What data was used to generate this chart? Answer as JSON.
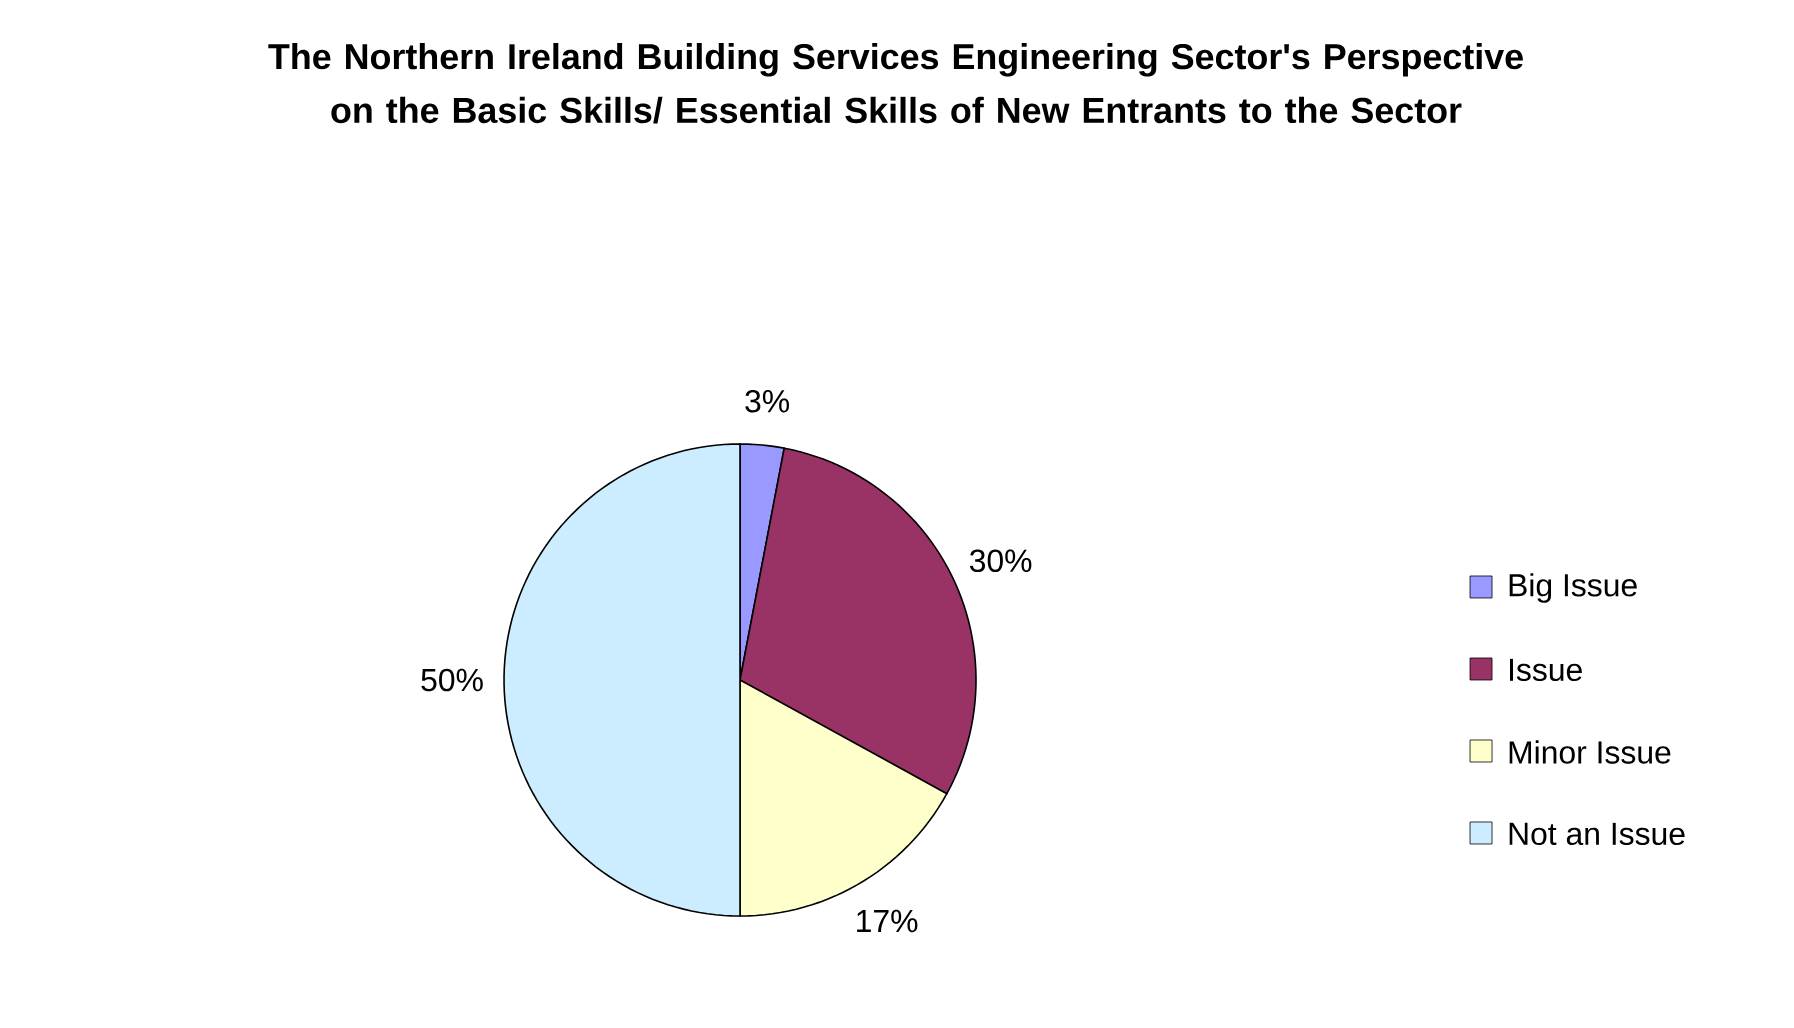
{
  "chart_data": {
    "type": "pie",
    "title": "The Northern Ireland Building Services Engineering Sector's Perspective on the Basic Skills/ Essential Skills of New Entrants to the Sector",
    "categories": [
      "Big Issue",
      "Issue",
      "Minor Issue",
      "Not an Issue"
    ],
    "values": [
      3,
      30,
      17,
      50
    ],
    "colors": [
      "#9999ff",
      "#993366",
      "#ffffcc",
      "#ccecff"
    ],
    "value_labels": [
      "3%",
      "30%",
      "17%",
      "50%"
    ],
    "legend": "right"
  }
}
